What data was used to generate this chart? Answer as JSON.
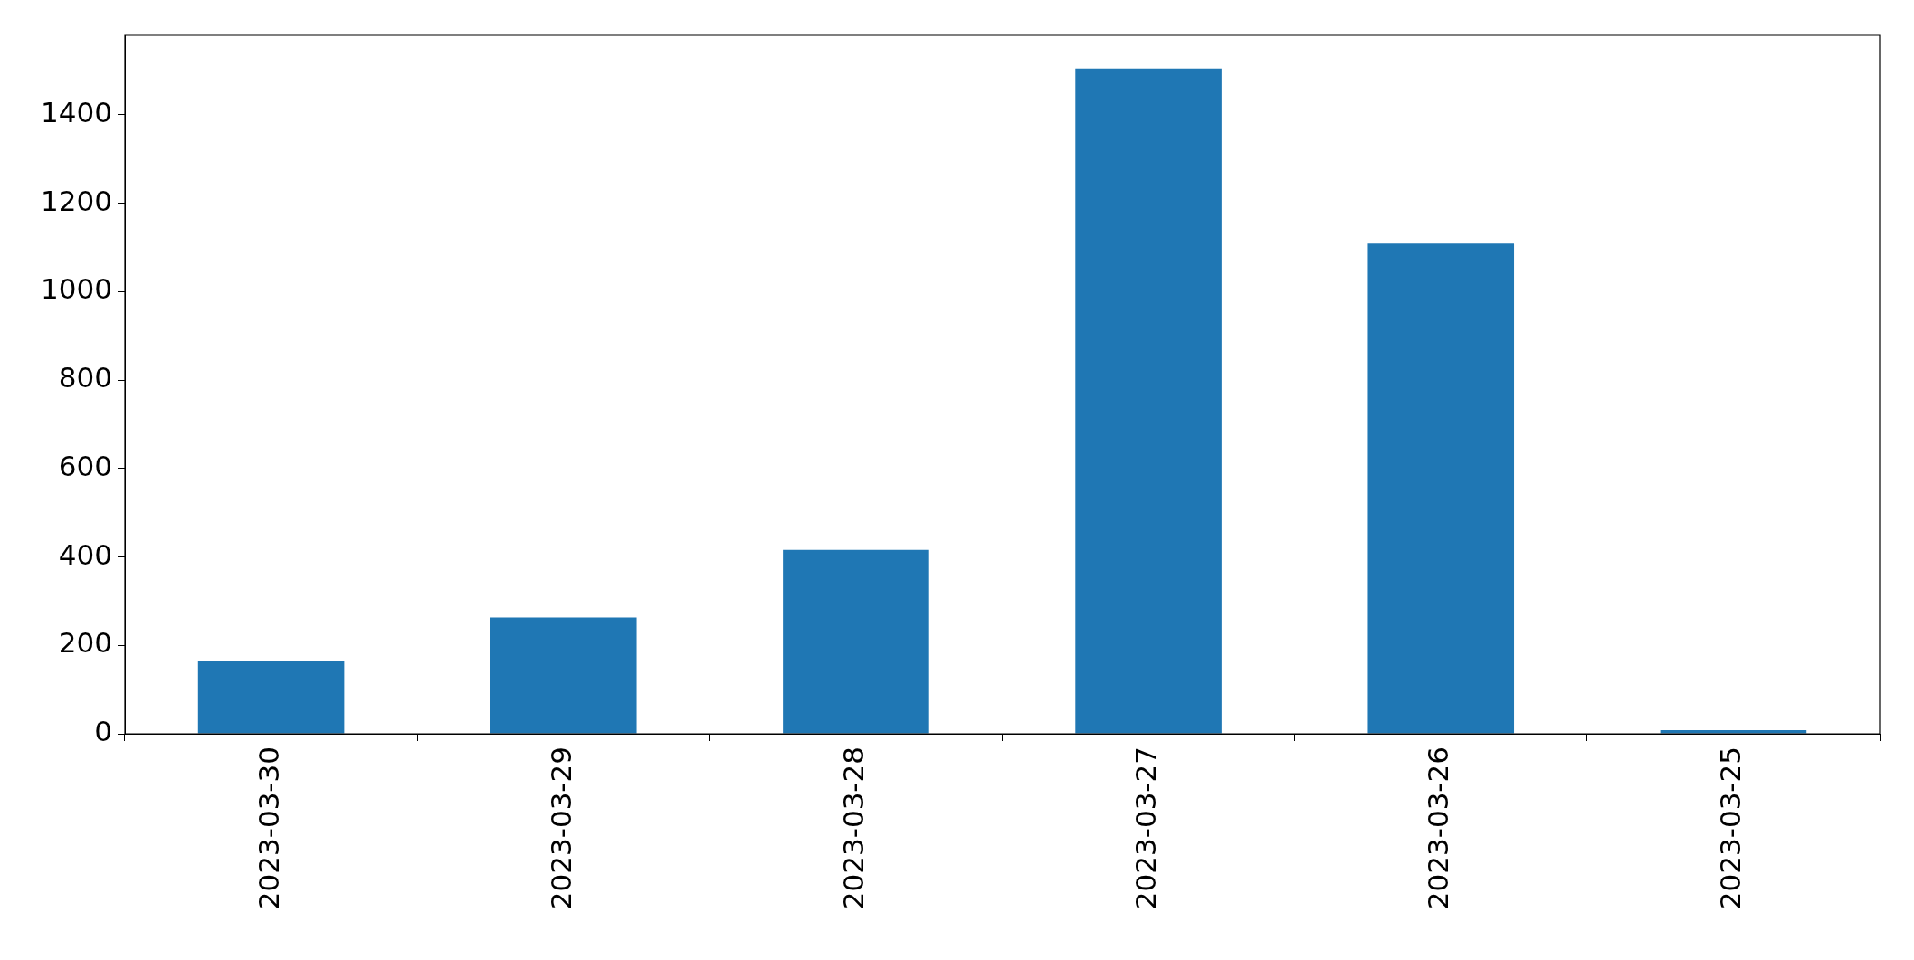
{
  "chart_data": {
    "type": "bar",
    "categories": [
      "2023-03-30",
      "2023-03-29",
      "2023-03-28",
      "2023-03-27",
      "2023-03-26",
      "2023-03-25"
    ],
    "values": [
      164,
      263,
      416,
      1505,
      1109,
      8
    ],
    "color": "#1f77b4",
    "ylim": [
      0,
      1580
    ],
    "yticks": [
      0,
      200,
      400,
      600,
      800,
      1000,
      1200,
      1400
    ]
  }
}
